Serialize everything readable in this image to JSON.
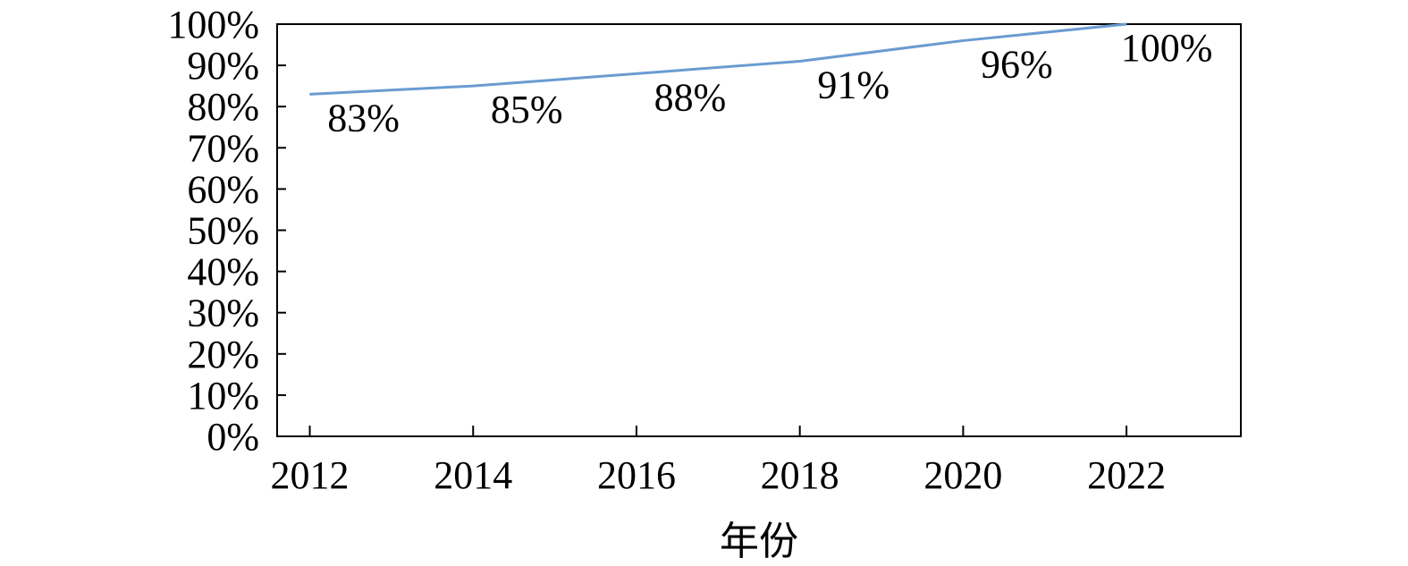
{
  "chart_data": {
    "type": "line",
    "title": "",
    "xlabel": "年份",
    "ylabel": "",
    "x": [
      2012,
      2014,
      2016,
      2018,
      2020,
      2022
    ],
    "series": [
      {
        "values": [
          83,
          85,
          88,
          91,
          96,
          100
        ],
        "data_labels": [
          "83%",
          "85%",
          "88%",
          "91%",
          "96%",
          "100%"
        ],
        "color": "#6a9bd1"
      }
    ],
    "xlim": [
      2011.6,
      2023.4
    ],
    "ylim": [
      0,
      100
    ],
    "y_ticks": [
      0,
      10,
      20,
      30,
      40,
      50,
      60,
      70,
      80,
      90,
      100
    ],
    "y_tick_labels": [
      "0%",
      "10%",
      "20%",
      "30%",
      "40%",
      "50%",
      "60%",
      "70%",
      "80%",
      "90%",
      "100%"
    ],
    "x_tick_labels": [
      "2012",
      "2014",
      "2016",
      "2018",
      "2020",
      "2022"
    ],
    "grid": false,
    "legend": "none"
  }
}
